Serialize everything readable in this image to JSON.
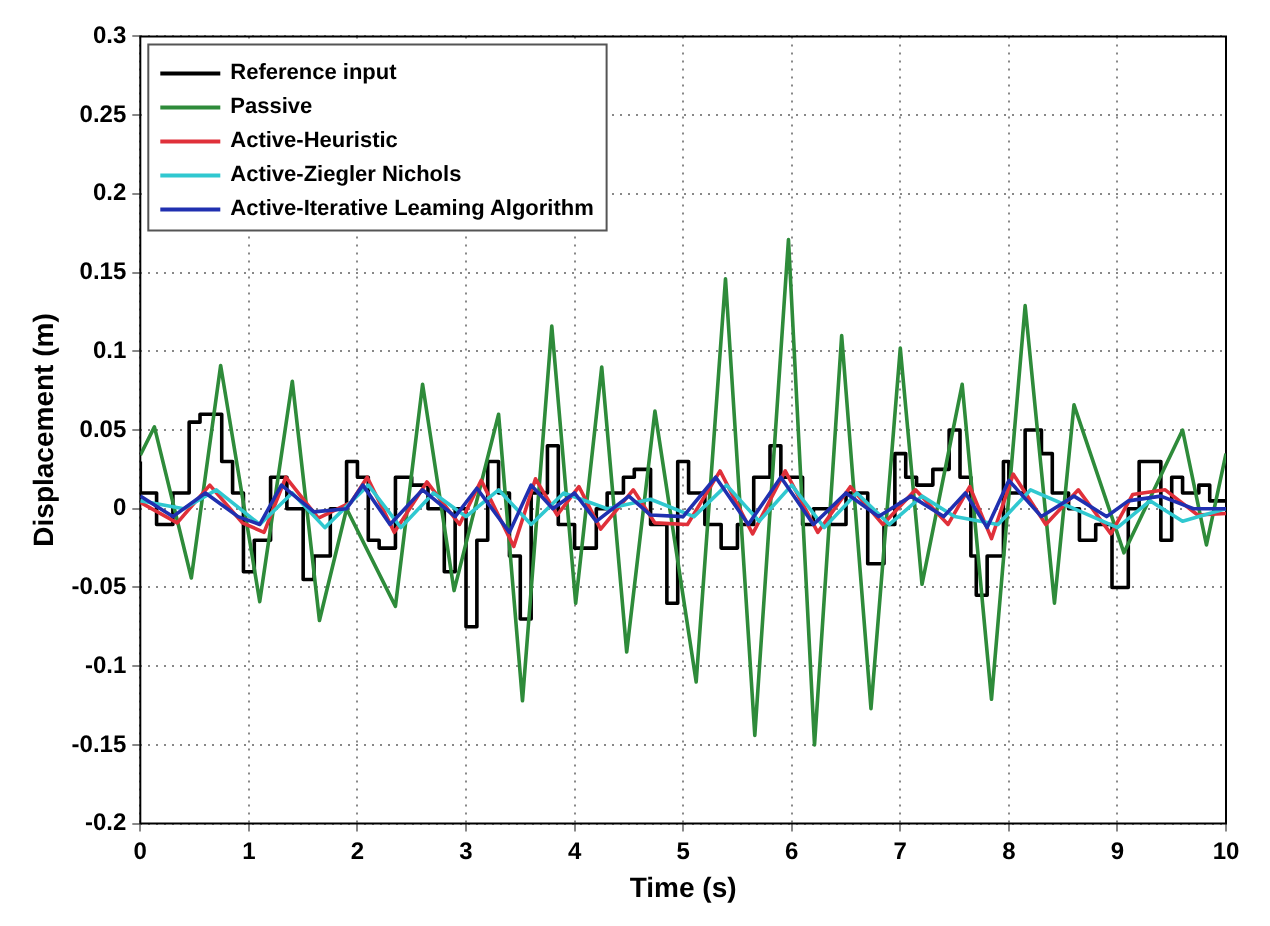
{
  "chart_data": {
    "type": "line",
    "xlabel": "Time (s)",
    "ylabel": "Displacement (m)",
    "xlim": [
      0,
      10
    ],
    "ylim": [
      -0.2,
      0.3
    ],
    "xticks": [
      0,
      1,
      2,
      3,
      4,
      5,
      6,
      7,
      8,
      9,
      10
    ],
    "yticks": [
      -0.2,
      -0.15,
      -0.1,
      -0.05,
      0,
      0.05,
      0.1,
      0.15,
      0.2,
      0.25,
      0.3
    ],
    "grid": true,
    "legend": "top left",
    "marker": "none",
    "line_style": "solid",
    "series": [
      {
        "name": "Reference input",
        "type": "step",
        "color": "#000000",
        "x": [
          0,
          0.15,
          0.3,
          0.45,
          0.55,
          0.75,
          0.85,
          0.95,
          1.05,
          1.2,
          1.35,
          1.5,
          1.6,
          1.75,
          1.9,
          2.0,
          2.1,
          2.2,
          2.35,
          2.5,
          2.65,
          2.8,
          2.9,
          3.0,
          3.1,
          3.2,
          3.3,
          3.4,
          3.5,
          3.6,
          3.75,
          3.85,
          4.0,
          4.2,
          4.3,
          4.45,
          4.55,
          4.7,
          4.85,
          4.95,
          5.05,
          5.2,
          5.35,
          5.5,
          5.65,
          5.8,
          5.9,
          6.1,
          6.2,
          6.35,
          6.5,
          6.7,
          6.85,
          6.95,
          7.05,
          7.15,
          7.3,
          7.45,
          7.55,
          7.65,
          7.7,
          7.8,
          7.95,
          8.0,
          8.15,
          8.3,
          8.4,
          8.55,
          8.65,
          8.8,
          8.95,
          9.1,
          9.2,
          9.3,
          9.4,
          9.5,
          9.6,
          9.75,
          9.85,
          9.95,
          10
        ],
        "values": [
          0.03,
          0.01,
          -0.01,
          0.01,
          0.055,
          0.06,
          0.03,
          0.01,
          -0.04,
          -0.02,
          0.02,
          0,
          -0.045,
          -0.03,
          0,
          0.03,
          0.02,
          -0.02,
          -0.025,
          0.02,
          0.015,
          0,
          -0.04,
          0,
          -0.075,
          -0.02,
          0.03,
          0.01,
          -0.03,
          -0.07,
          0.01,
          0.04,
          -0.01,
          -0.025,
          0,
          0.01,
          0.02,
          0.025,
          -0.01,
          -0.06,
          0.03,
          0.01,
          -0.01,
          -0.025,
          -0.01,
          0.02,
          0.04,
          0.02,
          -0.01,
          0,
          -0.01,
          0.01,
          -0.035,
          -0.01,
          0.035,
          0.02,
          0.015,
          0.025,
          0.05,
          0.02,
          -0.03,
          -0.055,
          -0.03,
          0.03,
          0.01,
          0.05,
          0.035,
          0.01,
          0,
          -0.02,
          -0.01,
          -0.05,
          0,
          0.03,
          0.03,
          -0.02,
          0.02,
          0.01,
          0.015,
          0.005,
          0.005
        ]
      },
      {
        "name": "Passive",
        "type": "line",
        "color": "#2e8b3a",
        "x": [
          0,
          0.13,
          0.47,
          0.74,
          1.1,
          1.4,
          1.65,
          1.9,
          2.35,
          2.6,
          2.89,
          3.3,
          3.52,
          3.79,
          4.01,
          4.25,
          4.48,
          4.74,
          5.12,
          5.39,
          5.66,
          5.97,
          6.21,
          6.46,
          6.73,
          7.0,
          7.2,
          7.57,
          7.84,
          8.15,
          8.42,
          8.6,
          9.06,
          9.6,
          9.82,
          10
        ],
        "values": [
          0.034,
          0.052,
          -0.044,
          0.091,
          -0.059,
          0.081,
          -0.071,
          0,
          -0.062,
          0.079,
          -0.052,
          0.06,
          -0.122,
          0.116,
          -0.06,
          0.09,
          -0.091,
          0.062,
          -0.11,
          0.146,
          -0.144,
          0.171,
          -0.15,
          0.11,
          -0.127,
          0.102,
          -0.048,
          0.079,
          -0.121,
          0.129,
          -0.06,
          0.066,
          -0.028,
          0.05,
          -0.023,
          0.035
        ]
      },
      {
        "name": "Active-Heuristic",
        "type": "line",
        "color": "#e0303a",
        "x": [
          0,
          0.34,
          0.64,
          0.94,
          1.14,
          1.34,
          1.64,
          1.94,
          2.09,
          2.34,
          2.64,
          2.94,
          3.14,
          3.44,
          3.64,
          3.84,
          4.04,
          4.24,
          4.54,
          4.74,
          5.04,
          5.34,
          5.64,
          5.94,
          6.24,
          6.54,
          6.84,
          7.14,
          7.44,
          7.64,
          7.84,
          8.04,
          8.34,
          8.64,
          8.94,
          9.14,
          9.44,
          9.74,
          10
        ],
        "values": [
          0.004,
          -0.009,
          0.015,
          -0.009,
          -0.015,
          0.02,
          -0.006,
          0.004,
          0.02,
          -0.015,
          0.017,
          -0.01,
          0.018,
          -0.024,
          0.019,
          -0.004,
          0.014,
          -0.013,
          0.012,
          -0.009,
          -0.01,
          0.024,
          -0.016,
          0.024,
          -0.015,
          0.014,
          -0.01,
          0.012,
          -0.01,
          0.014,
          -0.019,
          0.022,
          -0.01,
          0.012,
          -0.016,
          0.009,
          0.012,
          -0.004,
          -0.003
        ]
      },
      {
        "name": "Active-Ziegler Nichols",
        "type": "line",
        "color": "#30c8d0",
        "x": [
          0,
          0.4,
          0.7,
          1.1,
          1.4,
          1.7,
          2.1,
          2.4,
          2.7,
          3.0,
          3.3,
          3.6,
          3.9,
          4.3,
          4.7,
          5.1,
          5.4,
          5.7,
          6.0,
          6.3,
          6.6,
          6.9,
          7.2,
          7.5,
          7.9,
          8.2,
          8.6,
          9.0,
          9.3,
          9.6,
          10
        ],
        "values": [
          0.005,
          0,
          0.012,
          -0.01,
          0.01,
          -0.012,
          0.015,
          -0.012,
          0.01,
          -0.005,
          0.012,
          -0.01,
          0.01,
          0,
          0.006,
          -0.005,
          0.015,
          -0.008,
          0.015,
          -0.012,
          0.01,
          -0.01,
          0.008,
          -0.005,
          -0.01,
          0.012,
          0,
          -0.012,
          0.005,
          -0.008,
          0
        ]
      },
      {
        "name": "Active-Iterative Leaming Algorithm",
        "type": "line",
        "color": "#2030b0",
        "x": [
          0,
          0.3,
          0.6,
          0.9,
          1.1,
          1.3,
          1.6,
          1.9,
          2.05,
          2.3,
          2.6,
          2.9,
          3.1,
          3.4,
          3.6,
          3.8,
          4.0,
          4.2,
          4.5,
          4.7,
          5.0,
          5.3,
          5.6,
          5.9,
          6.2,
          6.5,
          6.8,
          7.1,
          7.4,
          7.6,
          7.8,
          8.0,
          8.3,
          8.6,
          8.9,
          9.1,
          9.4,
          9.7,
          10
        ],
        "values": [
          0.008,
          -0.005,
          0.01,
          -0.005,
          -0.01,
          0.015,
          -0.002,
          0,
          0.015,
          -0.01,
          0.012,
          -0.005,
          0.013,
          -0.015,
          0.015,
          0,
          0.01,
          -0.008,
          0.008,
          -0.004,
          -0.005,
          0.02,
          -0.01,
          0.02,
          -0.01,
          0.01,
          -0.005,
          0.008,
          -0.005,
          0.01,
          -0.012,
          0.018,
          -0.005,
          0.008,
          -0.005,
          0.005,
          0.008,
          0,
          0
        ]
      }
    ]
  }
}
